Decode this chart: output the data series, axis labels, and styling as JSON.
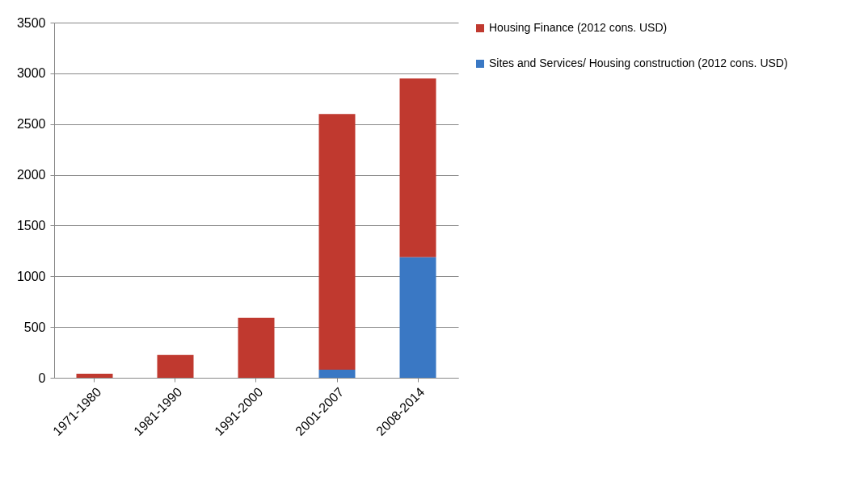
{
  "chart_data": {
    "type": "bar",
    "stacked": true,
    "categories": [
      "1971-1980",
      "1981-1990",
      "1991-2000",
      "2001-2007",
      "2008-2014"
    ],
    "series": [
      {
        "name": "Sites and Services/ Housing construction (2012 cons. USD)",
        "color": "#3a78c4",
        "values": [
          0,
          0,
          0,
          80,
          1190
        ]
      },
      {
        "name": "Housing Finance (2012 cons. USD)",
        "color": "#c0392f",
        "values": [
          40,
          225,
          590,
          2520,
          1760
        ]
      }
    ],
    "ylim": [
      0,
      3500
    ],
    "yticks": [
      0,
      500,
      1000,
      1500,
      2000,
      2500,
      3000,
      3500
    ],
    "grid": "y",
    "legend": "right"
  }
}
